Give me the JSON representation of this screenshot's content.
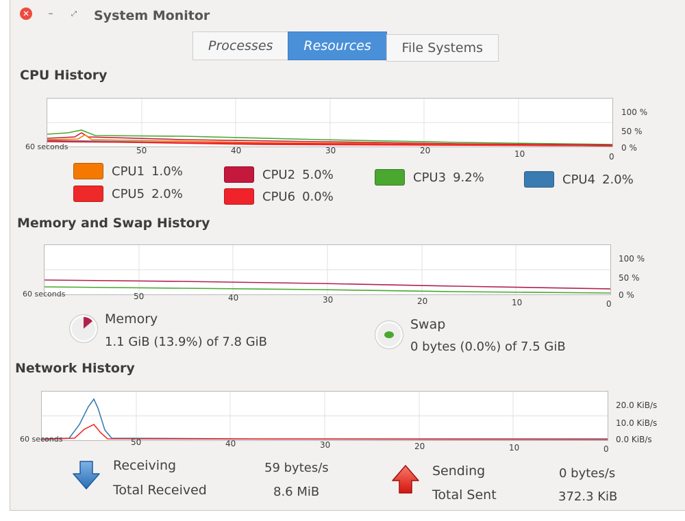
{
  "window": {
    "title": "System Monitor"
  },
  "tabs": [
    {
      "label": "Processes",
      "active": false
    },
    {
      "label": "Resources",
      "active": true
    },
    {
      "label": "File Systems",
      "active": false
    }
  ],
  "cpu": {
    "title": "CPU History",
    "x_ticks": [
      "60 seconds",
      "50",
      "40",
      "30",
      "20",
      "10",
      "0"
    ],
    "y_ticks": [
      "100 %",
      "50 %",
      "0 %"
    ],
    "legend": [
      {
        "name": "CPU1",
        "value": "1.0%",
        "color": "#f57900"
      },
      {
        "name": "CPU2",
        "value": "5.0%",
        "color": "#c4183c"
      },
      {
        "name": "CPU3",
        "value": "9.2%",
        "color": "#4aa730"
      },
      {
        "name": "CPU4",
        "value": "2.0%",
        "color": "#3a7cb2"
      },
      {
        "name": "CPU5",
        "value": "2.0%",
        "color": "#ef2929"
      },
      {
        "name": "CPU6",
        "value": "0.0%",
        "color": "#f0232a"
      }
    ]
  },
  "memory": {
    "title": "Memory and Swap History",
    "x_ticks": [
      "60 seconds",
      "50",
      "40",
      "30",
      "20",
      "10",
      "0"
    ],
    "y_ticks": [
      "100 %",
      "50 %",
      "0 %"
    ],
    "memory_label": "Memory",
    "memory_value": "1.1 GiB (13.9%) of 7.8 GiB",
    "memory_fraction": 0.139,
    "memory_color": "#b0224d",
    "swap_label": "Swap",
    "swap_value": "0 bytes (0.0%) of 7.5 GiB",
    "swap_fraction": 0.0,
    "swap_color": "#4aa730"
  },
  "network": {
    "title": "Network History",
    "x_ticks": [
      "60 seconds",
      "50",
      "40",
      "30",
      "20",
      "10",
      "0"
    ],
    "y_ticks": [
      "20.0 KiB/s",
      "10.0 KiB/s",
      "0.0 KiB/s"
    ],
    "receiving_label": "Receiving",
    "receiving_value": "59 bytes/s",
    "total_received_label": "Total Received",
    "total_received_value": "8.6 MiB",
    "sending_label": "Sending",
    "sending_value": "0 bytes/s",
    "total_sent_label": "Total Sent",
    "total_sent_value": "372.3 KiB",
    "receive_color": "#3a7cb2",
    "send_color": "#ef2929"
  }
}
